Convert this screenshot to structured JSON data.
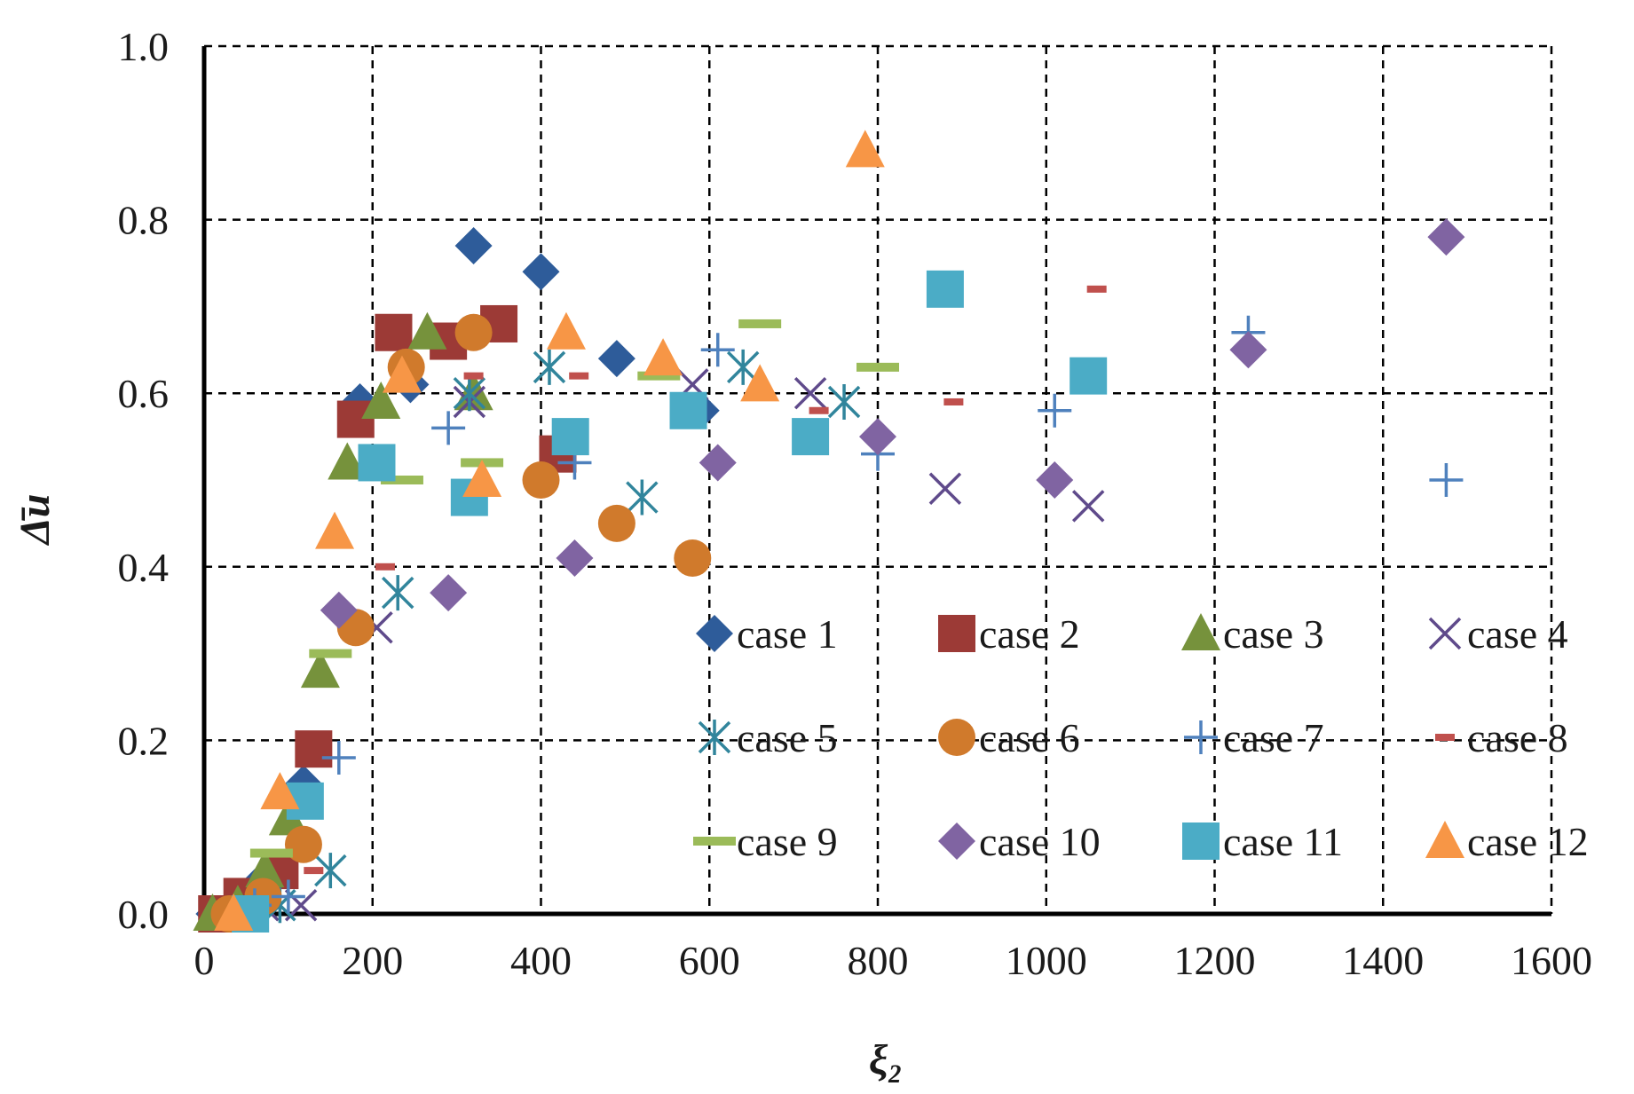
{
  "chart_data": {
    "type": "scatter",
    "title": "",
    "xlabel": "ξ₂",
    "ylabel": "Δ̄u",
    "xlim": [
      0,
      1600
    ],
    "ylim": [
      0,
      1.0
    ],
    "x_ticks": [
      "0",
      "200",
      "400",
      "600",
      "800",
      "1000",
      "1200",
      "1400",
      "1600"
    ],
    "y_ticks": [
      "0.0",
      "0.2",
      "0.4",
      "0.6",
      "0.8",
      "1.0"
    ],
    "grid": true,
    "legend": "bottom-right, 3 rows x 4 columns",
    "series": [
      {
        "name": "case 1",
        "marker": "diamond",
        "color": "#2E5C9A",
        "points": [
          [
            12,
            0.0
          ],
          [
            38,
            0.01
          ],
          [
            70,
            0.04
          ],
          [
            118,
            0.15
          ],
          [
            185,
            0.59
          ],
          [
            245,
            0.61
          ],
          [
            320,
            0.77
          ],
          [
            400,
            0.74
          ],
          [
            490,
            0.64
          ],
          [
            590,
            0.58
          ]
        ]
      },
      {
        "name": "case 2",
        "marker": "square",
        "color": "#9C3A36",
        "points": [
          [
            15,
            0.0
          ],
          [
            45,
            0.02
          ],
          [
            90,
            0.05
          ],
          [
            130,
            0.19
          ],
          [
            180,
            0.57
          ],
          [
            225,
            0.67
          ],
          [
            290,
            0.66
          ],
          [
            350,
            0.68
          ],
          [
            420,
            0.53
          ]
        ]
      },
      {
        "name": "case 3",
        "marker": "triangle",
        "color": "#76923C",
        "points": [
          [
            10,
            0.0
          ],
          [
            40,
            0.01
          ],
          [
            72,
            0.05
          ],
          [
            100,
            0.11
          ],
          [
            138,
            0.28
          ],
          [
            170,
            0.52
          ],
          [
            210,
            0.59
          ],
          [
            265,
            0.67
          ],
          [
            320,
            0.6
          ]
        ]
      },
      {
        "name": "case 4",
        "marker": "x",
        "color": "#5F4A8B",
        "points": [
          [
            70,
            0.01
          ],
          [
            115,
            0.01
          ],
          [
            205,
            0.33
          ],
          [
            315,
            0.59
          ],
          [
            580,
            0.61
          ],
          [
            720,
            0.6
          ],
          [
            880,
            0.49
          ],
          [
            1050,
            0.47
          ]
        ]
      },
      {
        "name": "case 5",
        "marker": "asterisk",
        "color": "#31859C",
        "points": [
          [
            90,
            0.01
          ],
          [
            150,
            0.05
          ],
          [
            230,
            0.37
          ],
          [
            315,
            0.6
          ],
          [
            410,
            0.63
          ],
          [
            520,
            0.48
          ],
          [
            640,
            0.63
          ],
          [
            760,
            0.59
          ]
        ]
      },
      {
        "name": "case 6",
        "marker": "circle",
        "color": "#D07A2C",
        "points": [
          [
            30,
            0.0
          ],
          [
            70,
            0.02
          ],
          [
            118,
            0.08
          ],
          [
            180,
            0.33
          ],
          [
            240,
            0.63
          ],
          [
            320,
            0.67
          ],
          [
            400,
            0.5
          ],
          [
            490,
            0.45
          ],
          [
            580,
            0.41
          ]
        ]
      },
      {
        "name": "case 7",
        "marker": "plus",
        "color": "#4F81BD",
        "points": [
          [
            60,
            0.01
          ],
          [
            100,
            0.02
          ],
          [
            160,
            0.18
          ],
          [
            290,
            0.56
          ],
          [
            440,
            0.52
          ],
          [
            610,
            0.65
          ],
          [
            800,
            0.53
          ],
          [
            1010,
            0.58
          ],
          [
            1240,
            0.67
          ],
          [
            1475,
            0.5
          ]
        ]
      },
      {
        "name": "case 8",
        "marker": "dash",
        "color": "#C0504D",
        "points": [
          [
            130,
            0.05
          ],
          [
            215,
            0.4
          ],
          [
            320,
            0.62
          ],
          [
            445,
            0.62
          ],
          [
            730,
            0.58
          ],
          [
            890,
            0.59
          ],
          [
            1060,
            0.72
          ]
        ]
      },
      {
        "name": "case 9",
        "marker": "bar",
        "color": "#9BBB59",
        "points": [
          [
            80,
            0.07
          ],
          [
            150,
            0.3
          ],
          [
            235,
            0.5
          ],
          [
            330,
            0.52
          ],
          [
            540,
            0.62
          ],
          [
            660,
            0.68
          ],
          [
            800,
            0.63
          ]
        ]
      },
      {
        "name": "case 10",
        "marker": "diamond",
        "color": "#8064A2",
        "points": [
          [
            160,
            0.35
          ],
          [
            290,
            0.37
          ],
          [
            440,
            0.41
          ],
          [
            610,
            0.52
          ],
          [
            800,
            0.55
          ],
          [
            1010,
            0.5
          ],
          [
            1240,
            0.65
          ],
          [
            1475,
            0.78
          ]
        ]
      },
      {
        "name": "case 11",
        "marker": "square",
        "color": "#4BACC6",
        "points": [
          [
            55,
            0.0
          ],
          [
            120,
            0.13
          ],
          [
            205,
            0.52
          ],
          [
            315,
            0.48
          ],
          [
            435,
            0.55
          ],
          [
            575,
            0.58
          ],
          [
            720,
            0.55
          ],
          [
            880,
            0.72
          ],
          [
            1050,
            0.62
          ]
        ]
      },
      {
        "name": "case 12",
        "marker": "triangle",
        "color": "#F79646",
        "points": [
          [
            35,
            0.0
          ],
          [
            90,
            0.14
          ],
          [
            155,
            0.44
          ],
          [
            235,
            0.62
          ],
          [
            330,
            0.5
          ],
          [
            430,
            0.67
          ],
          [
            545,
            0.64
          ],
          [
            660,
            0.61
          ],
          [
            785,
            0.88
          ]
        ]
      }
    ]
  }
}
